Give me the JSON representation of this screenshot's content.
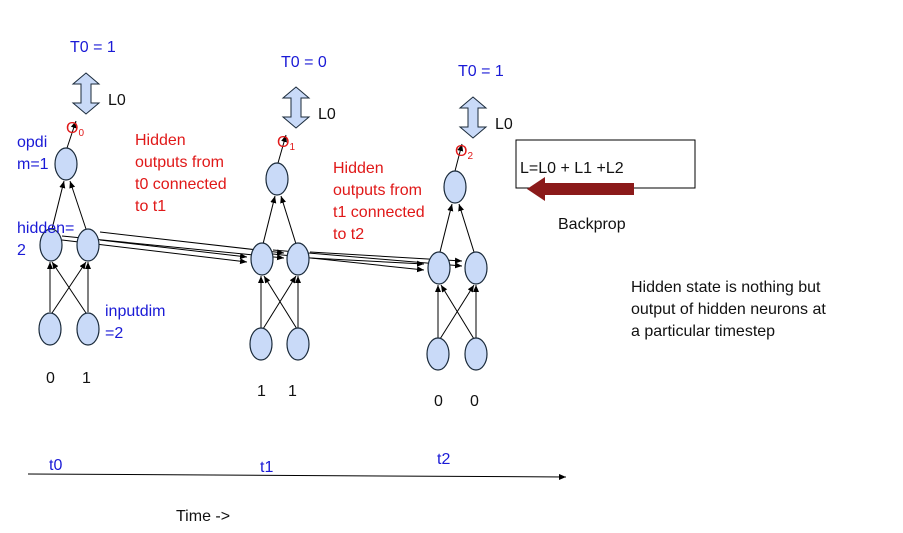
{
  "timesteps": [
    {
      "id": "t0",
      "target": "T0 = 1",
      "loss": "L0",
      "output_label": "O",
      "output_sub": "0",
      "time_label": "t0",
      "inputs": [
        "0",
        "1"
      ]
    },
    {
      "id": "t1",
      "target": "T0 = 0",
      "loss": "L0",
      "output_label": "O",
      "output_sub": "1",
      "time_label": "t1",
      "inputs": [
        "1",
        "1"
      ]
    },
    {
      "id": "t2",
      "target": "T0 = 1",
      "loss": "L0",
      "output_label": "O",
      "output_sub": "2",
      "time_label": "t2",
      "inputs": [
        "0",
        "0"
      ]
    }
  ],
  "annotations": {
    "opdim": "opdi m=1",
    "hidden": "hidden= 2",
    "inputdim": "inputdim =2",
    "hidden_t0": "Hidden outputs from t0 connected to t1",
    "hidden_t1": "Hidden outputs from t1 connected to t2",
    "loss_total": "L=L0 + L1 +L2",
    "backprop": "Backprop",
    "note": "Hidden state is nothing but output of hidden neurons at a particular timestep",
    "time_axis": "Time ->"
  },
  "colors": {
    "blue_text": "#1a1ad6",
    "red_text": "#e01818",
    "neuron_fill": "#c9daf8",
    "loss_arrow_fill": "#c9daf8",
    "backprop_arrow": "#8b1a1a"
  }
}
